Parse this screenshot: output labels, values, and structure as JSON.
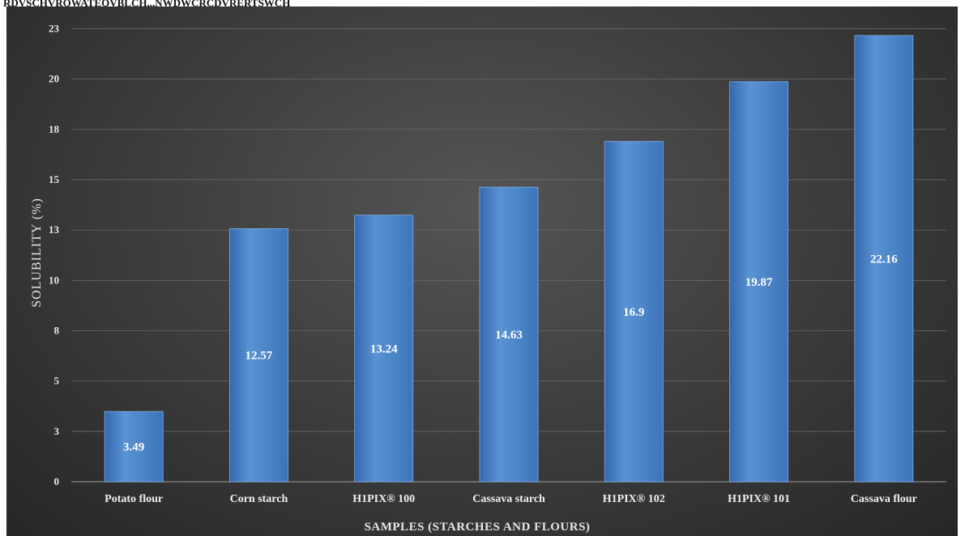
{
  "header_fragment": "RDVSCHVRQWATEQVBLCH,,,NWDWCRCDVRERTSWCH",
  "chart_data": {
    "type": "bar",
    "title": "",
    "xlabel": "SAMPLES (STARCHES AND FLOURS)",
    "ylabel": "SOLUBILITY (%)",
    "categories": [
      "Potato flour",
      "Corn starch",
      "H1PIX® 100",
      "Cassava starch",
      "H1PIX® 102",
      "H1PIX® 101",
      "Cassava flour"
    ],
    "values": [
      3.49,
      12.57,
      13.24,
      14.63,
      16.9,
      19.87,
      22.16
    ],
    "value_labels": [
      "3.49",
      "12.57",
      "13.24",
      "14.63",
      "16.9",
      "19.87",
      "22.16"
    ],
    "ylim": [
      0,
      23
    ],
    "yticks": [
      0,
      2.5,
      5,
      7.5,
      10,
      12.5,
      15,
      17.5,
      20,
      22.5
    ],
    "ytick_labels": [
      "0",
      "3",
      "5",
      "8",
      "10",
      "13",
      "15",
      "18",
      "20",
      "23"
    ],
    "grid": true,
    "legend": "none",
    "colors": {
      "bar": "#4a84c8",
      "bar_light": "#5b95d6",
      "bar_dark": "#2f64a8",
      "background": "#3a3a3a",
      "text": "#ffffff"
    }
  }
}
